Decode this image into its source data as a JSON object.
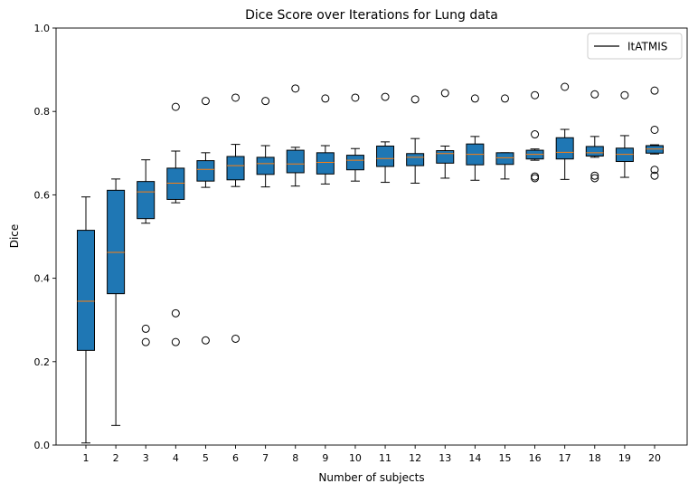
{
  "chart_data": {
    "type": "box",
    "title": "Dice Score over Iterations for Lung data",
    "xlabel": "Number of subjects",
    "ylabel": "Dice",
    "ylim": [
      0,
      1
    ],
    "yticks": [
      "0.0",
      "0.2",
      "0.4",
      "0.6",
      "0.8",
      "1.0"
    ],
    "legend": {
      "label": "ItATMIS",
      "position": "top-right"
    },
    "colors": {
      "box_fill": "#1f77b4",
      "median": "#ff7f0e",
      "edge": "#000000"
    },
    "categories": [
      "1",
      "2",
      "3",
      "4",
      "5",
      "6",
      "7",
      "8",
      "9",
      "10",
      "11",
      "12",
      "13",
      "14",
      "15",
      "16",
      "17",
      "18",
      "19",
      "20"
    ],
    "boxes": [
      {
        "whisker_low": 0.005,
        "q1": 0.227,
        "median": 0.345,
        "q3": 0.515,
        "whisker_high": 0.595,
        "outliers": []
      },
      {
        "whisker_low": 0.047,
        "q1": 0.363,
        "median": 0.462,
        "q3": 0.611,
        "whisker_high": 0.638,
        "outliers": []
      },
      {
        "whisker_low": 0.532,
        "q1": 0.543,
        "median": 0.607,
        "q3": 0.632,
        "whisker_high": 0.684,
        "outliers": [
          0.279,
          0.247
        ]
      },
      {
        "whisker_low": 0.581,
        "q1": 0.589,
        "median": 0.628,
        "q3": 0.664,
        "whisker_high": 0.705,
        "outliers": [
          0.811,
          0.316,
          0.247
        ]
      },
      {
        "whisker_low": 0.618,
        "q1": 0.633,
        "median": 0.661,
        "q3": 0.682,
        "whisker_high": 0.701,
        "outliers": [
          0.825,
          0.251
        ]
      },
      {
        "whisker_low": 0.62,
        "q1": 0.636,
        "median": 0.67,
        "q3": 0.692,
        "whisker_high": 0.721,
        "outliers": [
          0.833,
          0.255
        ]
      },
      {
        "whisker_low": 0.619,
        "q1": 0.649,
        "median": 0.675,
        "q3": 0.69,
        "whisker_high": 0.718,
        "outliers": [
          0.825
        ]
      },
      {
        "whisker_low": 0.621,
        "q1": 0.653,
        "median": 0.674,
        "q3": 0.707,
        "whisker_high": 0.714,
        "outliers": [
          0.855
        ]
      },
      {
        "whisker_low": 0.626,
        "q1": 0.65,
        "median": 0.678,
        "q3": 0.701,
        "whisker_high": 0.718,
        "outliers": [
          0.831
        ]
      },
      {
        "whisker_low": 0.633,
        "q1": 0.66,
        "median": 0.683,
        "q3": 0.695,
        "whisker_high": 0.711,
        "outliers": [
          0.833
        ]
      },
      {
        "whisker_low": 0.63,
        "q1": 0.668,
        "median": 0.687,
        "q3": 0.717,
        "whisker_high": 0.727,
        "outliers": [
          0.835
        ]
      },
      {
        "whisker_low": 0.628,
        "q1": 0.67,
        "median": 0.69,
        "q3": 0.699,
        "whisker_high": 0.735,
        "outliers": [
          0.829
        ]
      },
      {
        "whisker_low": 0.64,
        "q1": 0.676,
        "median": 0.699,
        "q3": 0.706,
        "whisker_high": 0.717,
        "outliers": [
          0.844
        ]
      },
      {
        "whisker_low": 0.635,
        "q1": 0.672,
        "median": 0.697,
        "q3": 0.722,
        "whisker_high": 0.74,
        "outliers": [
          0.831
        ]
      },
      {
        "whisker_low": 0.638,
        "q1": 0.673,
        "median": 0.689,
        "q3": 0.701,
        "whisker_high": 0.701,
        "outliers": [
          0.831
        ]
      },
      {
        "whisker_low": 0.683,
        "q1": 0.686,
        "median": 0.697,
        "q3": 0.707,
        "whisker_high": 0.71,
        "outliers": [
          0.839,
          0.745,
          0.644,
          0.64
        ]
      },
      {
        "whisker_low": 0.637,
        "q1": 0.686,
        "median": 0.702,
        "q3": 0.737,
        "whisker_high": 0.757,
        "outliers": [
          0.859
        ]
      },
      {
        "whisker_low": 0.69,
        "q1": 0.693,
        "median": 0.701,
        "q3": 0.716,
        "whisker_high": 0.74,
        "outliers": [
          0.841,
          0.646,
          0.64
        ]
      },
      {
        "whisker_low": 0.642,
        "q1": 0.68,
        "median": 0.697,
        "q3": 0.712,
        "whisker_high": 0.742,
        "outliers": [
          0.839
        ]
      },
      {
        "whisker_low": 0.698,
        "q1": 0.7,
        "median": 0.71,
        "q3": 0.718,
        "whisker_high": 0.72,
        "outliers": [
          0.85,
          0.756,
          0.66,
          0.646
        ]
      }
    ]
  }
}
